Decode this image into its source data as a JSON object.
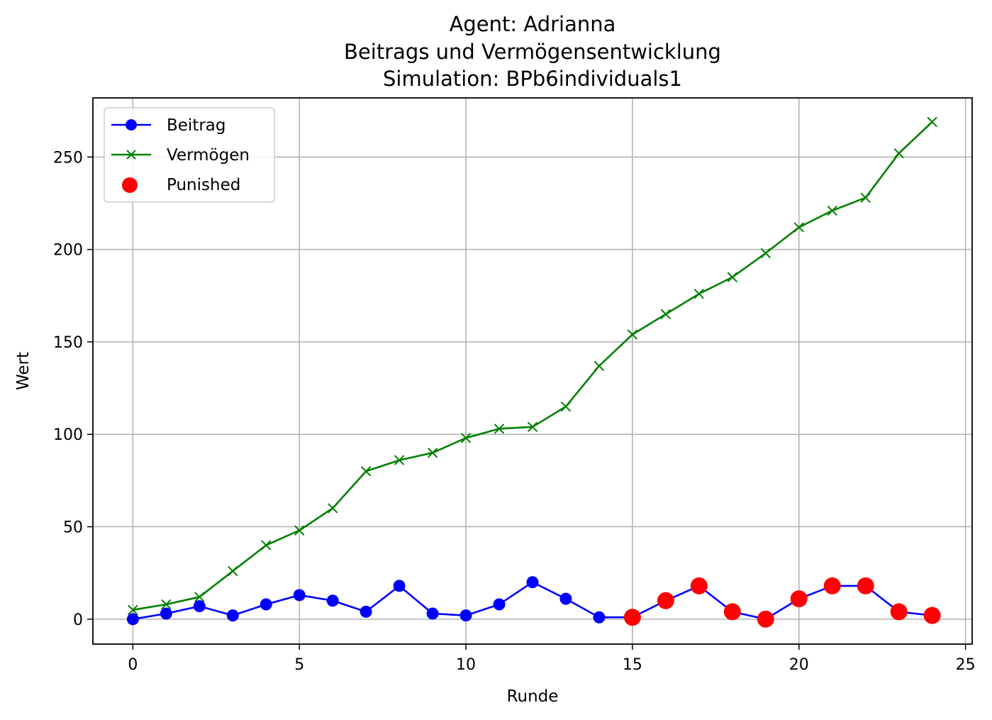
{
  "chart_data": {
    "type": "line",
    "title_lines": [
      "Agent: Adrianna",
      "Beitrags und Vermögensentwicklung",
      "Simulation: BPb6individuals1"
    ],
    "xlabel": "Runde",
    "ylabel": "Wert",
    "xlim": [
      -1.2,
      25.2
    ],
    "ylim": [
      -13.5,
      282
    ],
    "xticks": [
      0,
      5,
      10,
      15,
      20,
      25
    ],
    "yticks": [
      0,
      50,
      100,
      150,
      200,
      250
    ],
    "grid": true,
    "legend_position": "upper-left",
    "x": [
      0,
      1,
      2,
      3,
      4,
      5,
      6,
      7,
      8,
      9,
      10,
      11,
      12,
      13,
      14,
      15,
      16,
      17,
      18,
      19,
      20,
      21,
      22,
      23,
      24
    ],
    "series": [
      {
        "name": "Beitrag",
        "color": "#0000ff",
        "marker": "circle",
        "values": [
          0,
          3,
          7,
          2,
          8,
          13,
          10,
          4,
          18,
          3,
          2,
          8,
          20,
          11,
          1,
          1,
          10,
          18,
          4,
          0,
          11,
          18,
          18,
          4,
          2
        ]
      },
      {
        "name": "Vermögen",
        "color": "#008000",
        "marker": "x",
        "values": [
          5,
          8,
          12,
          26,
          40,
          48,
          60,
          80,
          86,
          90,
          98,
          103,
          104,
          115,
          137,
          154,
          165,
          176,
          185,
          198,
          212,
          221,
          228,
          252,
          269
        ]
      }
    ],
    "scatter": {
      "name": "Punished",
      "color": "#ff0000",
      "x": [
        15,
        16,
        17,
        18,
        19,
        20,
        21,
        22,
        23,
        24
      ],
      "y": [
        1,
        10,
        18,
        4,
        0,
        11,
        18,
        18,
        4,
        2
      ]
    }
  }
}
